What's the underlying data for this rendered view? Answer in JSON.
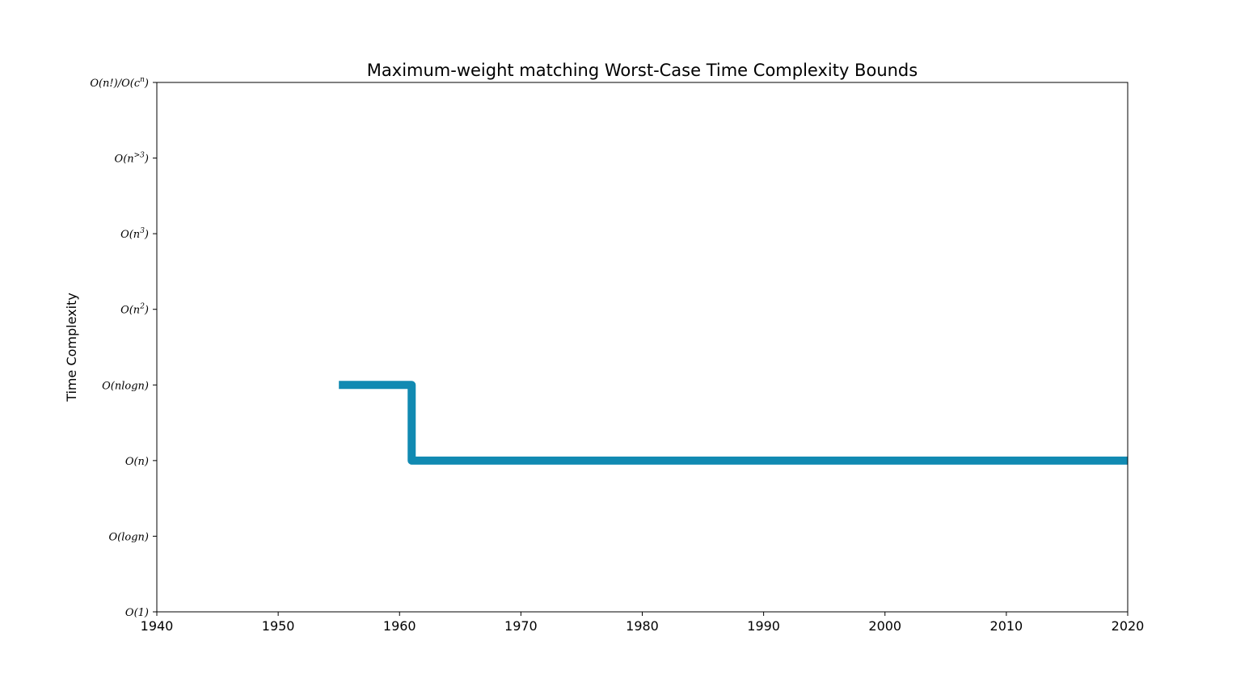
{
  "chart_data": {
    "type": "line",
    "title": "Maximum-weight matching Worst-Case Time Complexity Bounds",
    "xlabel": "",
    "ylabel": "Time Complexity",
    "xlim": [
      1940,
      2020
    ],
    "x_ticks": [
      1940,
      1950,
      1960,
      1970,
      1980,
      1990,
      2000,
      2010,
      2020
    ],
    "y_ticks": [
      "O(1)",
      "O(logn)",
      "O(n)",
      "O(nlogn)",
      "O(n^2)",
      "O(n^3)",
      "O(n^>3)",
      "O(n!)/O(c^n)"
    ],
    "grid": false,
    "line_style": "step",
    "series": [
      {
        "color": "#118ab2",
        "points": [
          {
            "x": 1955,
            "y": "O(nlogn)"
          },
          {
            "x": 1961,
            "y": "O(nlogn)"
          },
          {
            "x": 1961,
            "y": "O(n)"
          },
          {
            "x": 2020,
            "y": "O(n)"
          }
        ]
      }
    ]
  }
}
